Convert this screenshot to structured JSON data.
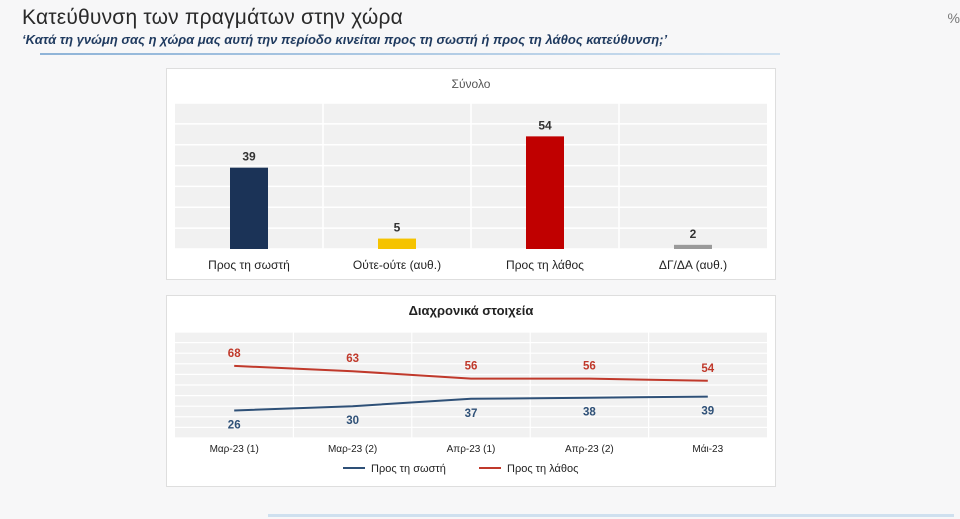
{
  "header": {
    "title": "Κατεύθυνση των πραγμάτων στην χώρα",
    "subtitle": "‘Κατά τη γνώμη σας η χώρα μας αυτή την περίοδο κινείται προς τη σωστή ή προς τη λάθος κατεύθυνση;’",
    "unit": "%"
  },
  "colors": {
    "navy": "#1b3357",
    "yellow": "#f5c300",
    "red": "#c00000",
    "gray": "#9a9a9a",
    "red_line": "#c0392b",
    "blue_line": "#2e5077"
  },
  "chart_data": [
    {
      "type": "bar",
      "title": "Σύνολο",
      "categories": [
        "Προς τη σωστή",
        "Ούτε-ούτε (αυθ.)",
        "Προς τη λάθος",
        "ΔΓ/ΔΑ (αυθ.)"
      ],
      "values": [
        39,
        5,
        54,
        2
      ],
      "ylim": [
        0,
        70
      ],
      "grid": true
    },
    {
      "type": "line",
      "title": "Διαχρονικά στοιχεία",
      "categories": [
        "Μαρ-23 (1)",
        "Μαρ-23 (2)",
        "Απρ-23 (1)",
        "Απρ-23 (2)",
        "Μάι-23"
      ],
      "series": [
        {
          "name": "Προς τη σωστή",
          "values": [
            26,
            30,
            37,
            38,
            39
          ]
        },
        {
          "name": "Προς τη λάθος",
          "values": [
            68,
            63,
            56,
            56,
            54
          ]
        }
      ],
      "ylim": [
        0,
        100
      ],
      "legend": "bottom",
      "grid": true
    }
  ]
}
